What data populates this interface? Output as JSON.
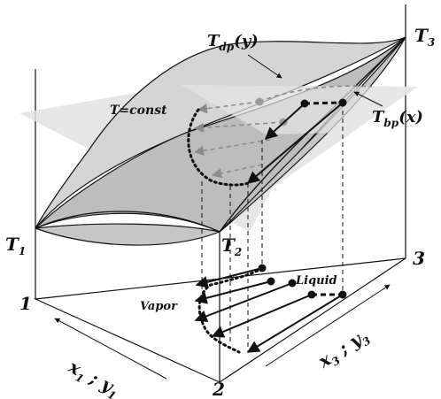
{
  "labels": {
    "T1": "T",
    "T1_sub": "1",
    "T2": "T",
    "T2_sub": "2",
    "T3": "T",
    "T3_sub": "3",
    "Tdp": "T",
    "Tdp_sub": "dp",
    "Tdp_arg": "(y)",
    "Tbp": "T",
    "Tbp_sub": "bp",
    "Tbp_arg": "(x)",
    "Tconst": "T=const",
    "corner1": "1",
    "corner2": "2",
    "corner3": "3",
    "vapor": "Vapor",
    "liquid": "Liquid",
    "axis13_x": "x",
    "axis13_x_sub": "1",
    "axis13_sep": " ; ",
    "axis13_y": "y",
    "axis13_y_sub": "1",
    "axis23_x": "x",
    "axis23_x_sub": "3",
    "axis23_sep": " ; ",
    "axis23_y": "y",
    "axis23_y_sub": "3"
  },
  "colors": {
    "line": "#111111",
    "surface_light": "#d0d0d0",
    "surface_mid": "#b8b8b8",
    "plane": "#e2e2e2",
    "dashed_gray": "#8a8a8a",
    "point_gray": "#9a9a9a"
  }
}
